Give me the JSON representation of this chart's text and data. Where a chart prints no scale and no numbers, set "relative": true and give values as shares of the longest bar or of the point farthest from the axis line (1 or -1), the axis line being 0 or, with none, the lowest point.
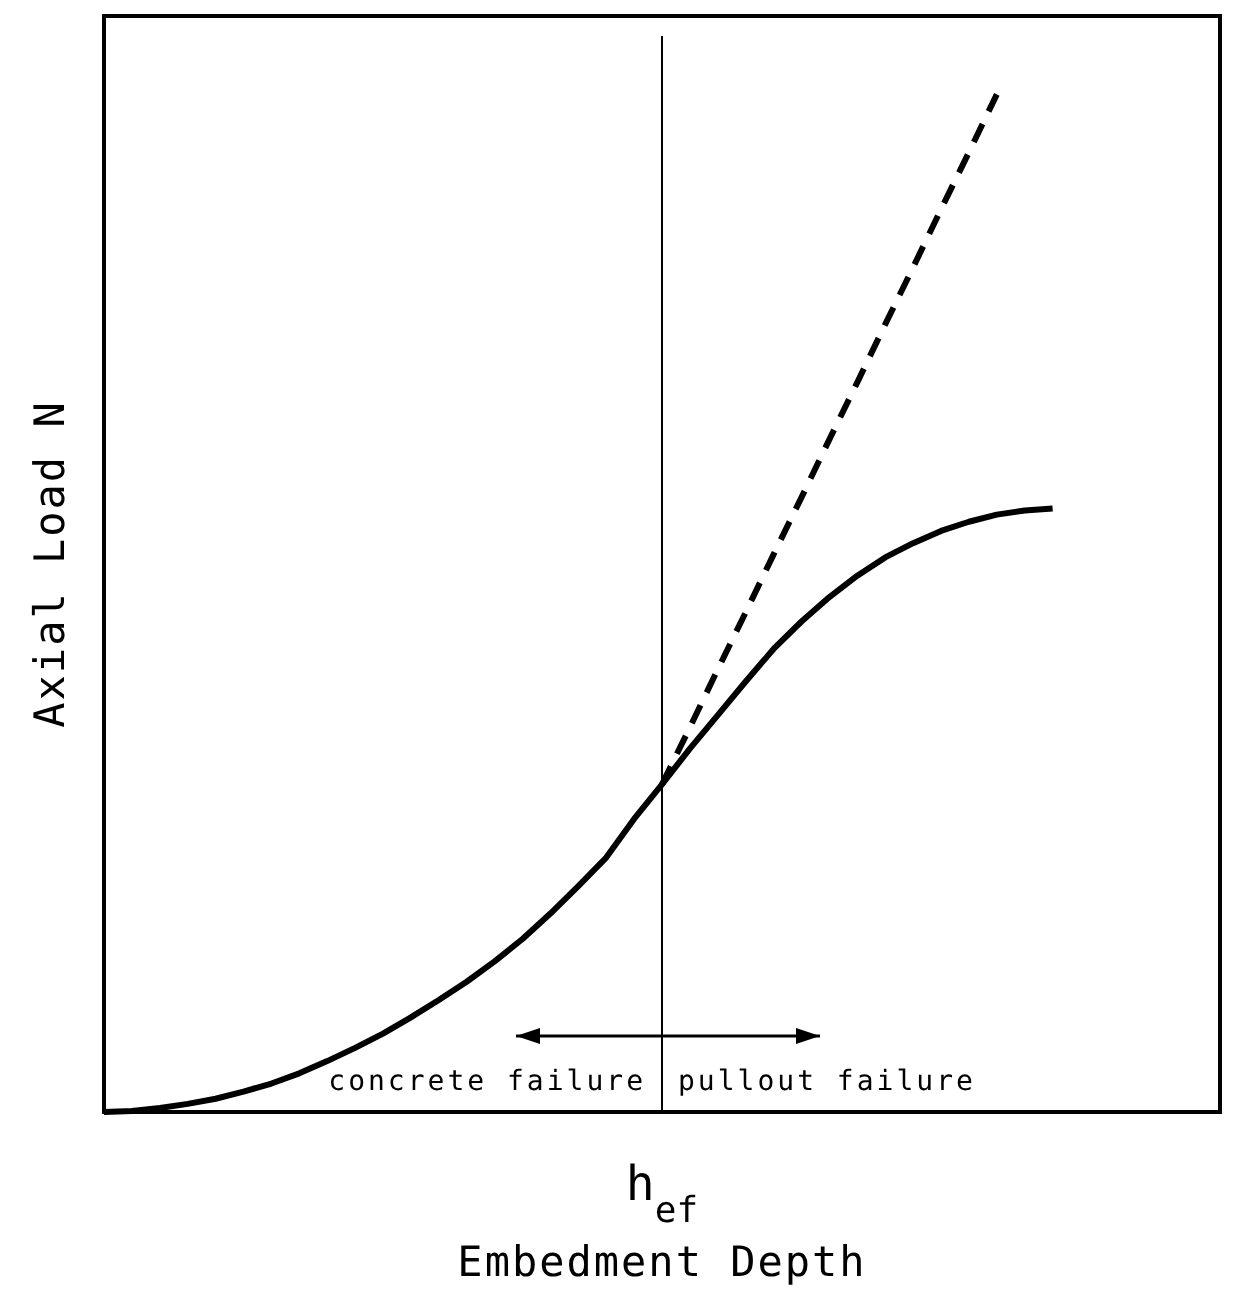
{
  "chart_data": {
    "type": "line",
    "relative": true,
    "xlabel": "Embedment Depth",
    "ylabel": "Axial Load N",
    "marker": "none",
    "categories": [
      null,
      null,
      null,
      null,
      null,
      null,
      null,
      null,
      null,
      null,
      null,
      null,
      null,
      null,
      null,
      null,
      null,
      null,
      null,
      null,
      null,
      null,
      null,
      null,
      null,
      null,
      null,
      null,
      null,
      null,
      null,
      null,
      null,
      null,
      null,
      null,
      null,
      null,
      null,
      null,
      null
    ],
    "series": [
      {
        "color": "#000000",
        "line_style": "solid",
        "values": [
          0,
          0.001,
          0.004,
          0.008,
          0.013,
          0.02,
          0.028,
          0.038,
          0.05,
          0.063,
          0.077,
          0.093,
          0.11,
          0.128,
          0.148,
          0.17,
          0.195,
          0.222,
          0.25,
          0.288,
          0.322,
          0.357,
          0.39,
          0.423,
          0.455,
          0.482,
          0.506,
          0.527,
          0.545,
          0.559,
          0.571,
          0.58,
          0.587,
          0.591,
          0.593,
          null,
          null,
          null,
          null,
          null,
          null
        ]
      },
      {
        "color": "#000000",
        "line_style": "dashed",
        "values": [
          null,
          null,
          null,
          null,
          null,
          null,
          null,
          null,
          null,
          null,
          null,
          null,
          null,
          null,
          null,
          null,
          null,
          null,
          null,
          null,
          0.322,
          0.378,
          0.435,
          0.491,
          0.548,
          0.604,
          0.661,
          0.717,
          0.774,
          0.83,
          0.887,
          0.943,
          1,
          null,
          null,
          null,
          null,
          null,
          null,
          null,
          null
        ]
      }
    ],
    "annotations": [
      "h$_{ef}$",
      "concrete failure",
      "pullout failure"
    ]
  }
}
